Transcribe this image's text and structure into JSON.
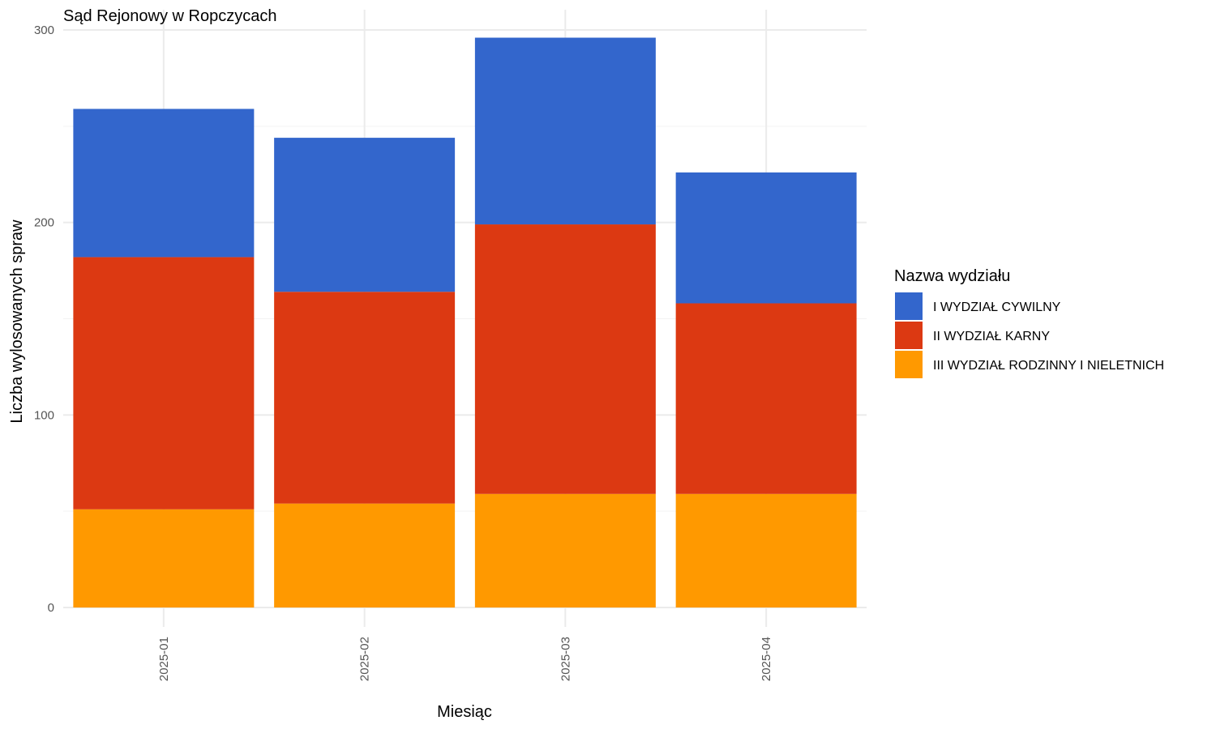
{
  "chart_data": {
    "type": "bar",
    "stacked": true,
    "title": "Sąd Rejonowy w Ropczycach",
    "xlabel": "Miesiąc",
    "ylabel": "Liczba wylosowanych spraw",
    "categories": [
      "2025-01",
      "2025-02",
      "2025-03",
      "2025-04"
    ],
    "ylim": [
      0,
      300
    ],
    "yticks": [
      0,
      100,
      200,
      300
    ],
    "grid": true,
    "legend_title": "Nazwa wydziału",
    "legend_position": "right",
    "series": [
      {
        "name": "III WYDZIAŁ RODZINNY I NIELETNICH",
        "color": "#FF9900",
        "values": [
          51,
          54,
          59,
          59
        ]
      },
      {
        "name": "II WYDZIAŁ KARNY",
        "color": "#DC3912",
        "values": [
          131,
          110,
          140,
          99
        ]
      },
      {
        "name": "I WYDZIAŁ CYWILNY",
        "color": "#3366CC",
        "values": [
          77,
          80,
          97,
          68
        ]
      }
    ],
    "legend_order": [
      "I WYDZIAŁ CYWILNY",
      "II WYDZIAŁ KARNY",
      "III WYDZIAŁ RODZINNY I NIELETNICH"
    ]
  }
}
